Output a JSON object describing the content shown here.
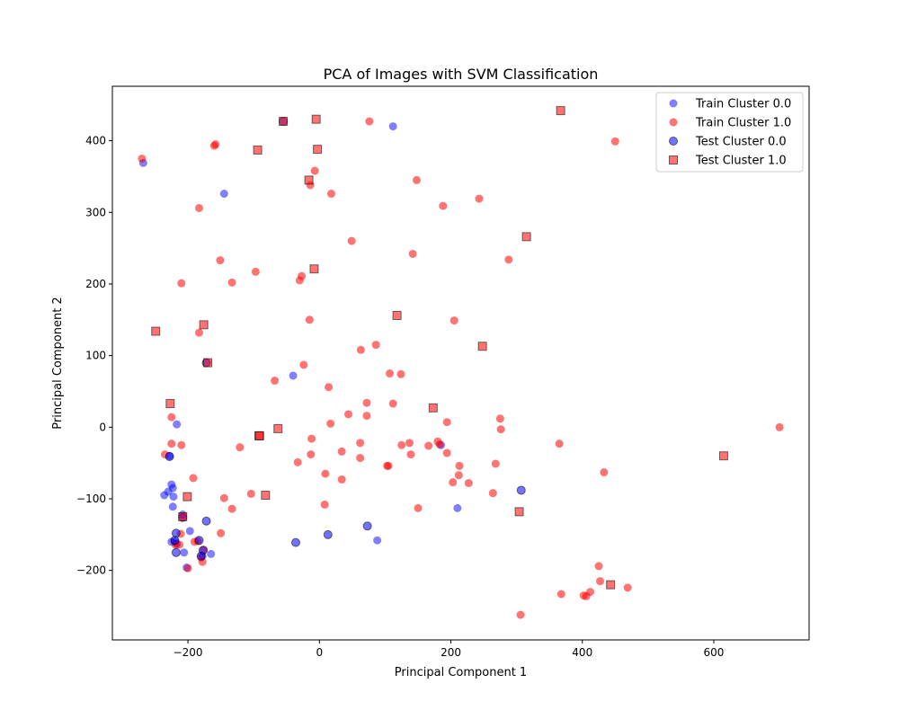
{
  "chart_data": {
    "type": "scatter",
    "title": "PCA of Images with SVM Classification",
    "xlabel": "Principal Component 1",
    "ylabel": "Principal Component 2",
    "xlim": [
      -315,
      745
    ],
    "ylim": [
      -297,
      476
    ],
    "xticks": [
      -200,
      0,
      200,
      400,
      600
    ],
    "yticks": [
      -200,
      -100,
      0,
      100,
      200,
      300,
      400
    ],
    "grid": false,
    "legend_position": "upper right",
    "series": [
      {
        "name": "Train Cluster 0.0",
        "marker": "circle",
        "color": "#0000ff",
        "alpha": 0.5,
        "edge": false,
        "points": [
          [
            -268,
            369
          ],
          [
            -145,
            326
          ],
          [
            112,
            420
          ],
          [
            -40,
            72
          ],
          [
            -217,
            4
          ],
          [
            -228,
            -40
          ],
          [
            -225,
            -80
          ],
          [
            -223,
            -85
          ],
          [
            -236,
            -95
          ],
          [
            -230,
            -90
          ],
          [
            -222,
            -97
          ],
          [
            -223,
            -111
          ],
          [
            -208,
            -122
          ],
          [
            -197,
            -145
          ],
          [
            -220,
            -160
          ],
          [
            -225,
            -160
          ],
          [
            -217,
            -163
          ],
          [
            -206,
            -175
          ],
          [
            -165,
            -177
          ],
          [
            -202,
            -196
          ],
          [
            185,
            -25
          ],
          [
            210,
            -113
          ],
          [
            88,
            -158
          ],
          [
            -178,
            -180
          ]
        ]
      },
      {
        "name": "Train Cluster 1.0",
        "marker": "circle",
        "color": "#ff0000",
        "alpha": 0.55,
        "edge": false,
        "points": [
          [
            -270,
            375
          ],
          [
            -158,
            395
          ],
          [
            -160,
            393
          ],
          [
            76,
            427
          ],
          [
            450,
            399
          ],
          [
            -7,
            358
          ],
          [
            -14,
            338
          ],
          [
            148,
            345
          ],
          [
            18,
            326
          ],
          [
            -183,
            306
          ],
          [
            188,
            309
          ],
          [
            243,
            319
          ],
          [
            49,
            260
          ],
          [
            142,
            242
          ],
          [
            288,
            234
          ],
          [
            -151,
            233
          ],
          [
            -97,
            217
          ],
          [
            -210,
            201
          ],
          [
            -133,
            202
          ],
          [
            -27,
            211
          ],
          [
            -30,
            205
          ],
          [
            -15,
            150
          ],
          [
            205,
            149
          ],
          [
            -183,
            132
          ],
          [
            63,
            108
          ],
          [
            86,
            115
          ],
          [
            -24,
            87
          ],
          [
            107,
            75
          ],
          [
            124,
            74
          ],
          [
            -68,
            65
          ],
          [
            14,
            56
          ],
          [
            72,
            34
          ],
          [
            112,
            33
          ],
          [
            -225,
            14
          ],
          [
            72,
            16
          ],
          [
            44,
            18
          ],
          [
            17,
            5
          ],
          [
            194,
            7
          ],
          [
            275,
            12
          ],
          [
            -12,
            -16
          ],
          [
            -225,
            -23
          ],
          [
            -210,
            -25
          ],
          [
            -121,
            -28
          ],
          [
            62,
            -22
          ],
          [
            125,
            -25
          ],
          [
            137,
            -22
          ],
          [
            166,
            -26
          ],
          [
            180,
            -20
          ],
          [
            183,
            -24
          ],
          [
            365,
            -23
          ],
          [
            276,
            -3
          ],
          [
            700,
            0
          ],
          [
            -235,
            -38
          ],
          [
            -13,
            -38
          ],
          [
            34,
            -34
          ],
          [
            139,
            -38
          ],
          [
            194,
            -36
          ],
          [
            62,
            -43
          ],
          [
            -33,
            -49
          ],
          [
            213,
            -54
          ],
          [
            268,
            -51
          ],
          [
            103,
            -54
          ],
          [
            105,
            -54
          ],
          [
            212,
            -67
          ],
          [
            433,
            -63
          ],
          [
            9,
            -65
          ],
          [
            -192,
            -71
          ],
          [
            34,
            -73
          ],
          [
            203,
            -77
          ],
          [
            227,
            -78
          ],
          [
            264,
            -92
          ],
          [
            -104,
            -93
          ],
          [
            -145,
            -99
          ],
          [
            8,
            -108
          ],
          [
            -133,
            -114
          ],
          [
            150,
            -113
          ],
          [
            -211,
            -149
          ],
          [
            -150,
            -148
          ],
          [
            -190,
            -160
          ],
          [
            -185,
            -159
          ],
          [
            -213,
            -164
          ],
          [
            -219,
            -164
          ],
          [
            -176,
            -171
          ],
          [
            -180,
            -182
          ],
          [
            -178,
            -188
          ],
          [
            -200,
            -197
          ],
          [
            425,
            -194
          ],
          [
            368,
            -233
          ],
          [
            402,
            -235
          ],
          [
            406,
            -236
          ],
          [
            412,
            -230
          ],
          [
            427,
            -215
          ],
          [
            469,
            -224
          ],
          [
            306,
            -262
          ]
        ]
      },
      {
        "name": "Test Cluster 0.0",
        "marker": "circle",
        "color": "#0000ff",
        "alpha": 0.55,
        "edge": true,
        "points": [
          [
            -55,
            427
          ],
          [
            -172,
            90
          ],
          [
            -228,
            -41
          ],
          [
            -208,
            -126
          ],
          [
            -172,
            -131
          ],
          [
            -218,
            -148
          ],
          [
            -220,
            -158
          ],
          [
            -183,
            -158
          ],
          [
            -218,
            -175
          ],
          [
            -177,
            -172
          ],
          [
            -180,
            -180
          ],
          [
            -36,
            -161
          ],
          [
            13,
            -150
          ],
          [
            73,
            -138
          ],
          [
            307,
            -88
          ]
        ]
      },
      {
        "name": "Test Cluster 1.0",
        "marker": "square",
        "color": "#ff0000",
        "alpha": 0.55,
        "edge": true,
        "points": [
          [
            -55,
            427
          ],
          [
            -5,
            430
          ],
          [
            367,
            442
          ],
          [
            -94,
            387
          ],
          [
            -3,
            388
          ],
          [
            -16,
            345
          ],
          [
            -8,
            221
          ],
          [
            315,
            266
          ],
          [
            118,
            156
          ],
          [
            -176,
            143
          ],
          [
            -249,
            134
          ],
          [
            248,
            113
          ],
          [
            -170,
            90
          ],
          [
            -227,
            33
          ],
          [
            173,
            27
          ],
          [
            -63,
            -2
          ],
          [
            -92,
            -12
          ],
          [
            -91,
            -12
          ],
          [
            615,
            -40
          ],
          [
            -201,
            -97
          ],
          [
            -82,
            -95
          ],
          [
            -208,
            -125
          ],
          [
            304,
            -118
          ],
          [
            443,
            -220
          ]
        ]
      }
    ]
  }
}
